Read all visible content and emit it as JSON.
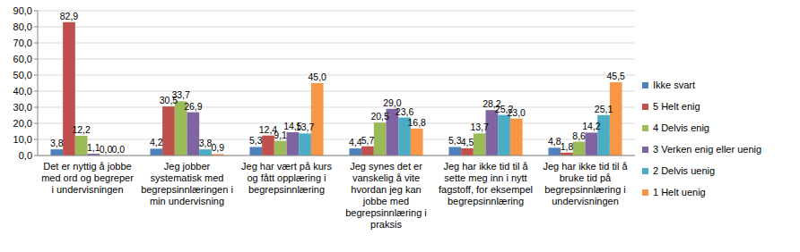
{
  "chart_data": {
    "type": "bar",
    "categories": [
      "Det er nyttig å jobbe med ord og begreper i undervisningen",
      "Jeg jobber systematisk med begrepsinnlæringen i min undervisning",
      "Jeg har vært på kurs og fått opplæring i begrepsinnlæring",
      "Jeg synes det er vanskelig å vite hvordan jeg kan jobbe med begrepsinnlæring i praksis",
      "Jeg har ikke tid til å sette meg inn i nytt fagstoff, for eksempel begrepsinnlæring",
      "Jeg har ikke tid til å bruke tid på begrepsinnlæring i undervisningen"
    ],
    "series": [
      {
        "name": "Ikke svart",
        "color": "#4f81bd",
        "values": [
          3.8,
          4.2,
          5.3,
          4.4,
          5.3,
          4.8
        ],
        "value_labels": [
          "3,8",
          "4,2",
          "5,3",
          "4,4",
          "5,3",
          "4,8"
        ]
      },
      {
        "name": "5 Helt enig",
        "color": "#c0504d",
        "values": [
          82.9,
          30.5,
          12.4,
          5.7,
          4.5,
          1.8
        ],
        "value_labels": [
          "82,9",
          "30,5",
          "12,4",
          "5,7",
          "4,5",
          "1,8"
        ]
      },
      {
        "name": "4 Delvis enig",
        "color": "#9bbb59",
        "values": [
          12.2,
          33.7,
          9.1,
          20.5,
          13.7,
          8.6
        ],
        "value_labels": [
          "12,2",
          "33,7",
          "9,1",
          "20,5",
          "13,7",
          "8,6"
        ]
      },
      {
        "name": "3 Verken enig eller uenig",
        "color": "#8064a2",
        "values": [
          1.1,
          26.9,
          14.5,
          29.0,
          28.2,
          14.2
        ],
        "value_labels": [
          "1,1",
          "26,9",
          "14,5",
          "29,0",
          "28,2",
          "14,2"
        ]
      },
      {
        "name": "2 Delvis uenig",
        "color": "#4bacc6",
        "values": [
          0.0,
          3.8,
          13.7,
          23.6,
          25.2,
          25.1
        ],
        "value_labels": [
          "0,0",
          "3,8",
          "13,7",
          "23,6",
          "25,2",
          "25,1"
        ]
      },
      {
        "name": "1 Helt uenig",
        "color": "#f79646",
        "values": [
          0.0,
          0.9,
          45.0,
          16.8,
          23.0,
          45.5
        ],
        "value_labels": [
          "0,0",
          "0,9",
          "45,0",
          "16,8",
          "23,0",
          "45,5"
        ]
      }
    ],
    "ylim": [
      0,
      90
    ],
    "yticks": [
      {
        "value": 0,
        "label": "0,0"
      },
      {
        "value": 10,
        "label": "10,0"
      },
      {
        "value": 20,
        "label": "20,0"
      },
      {
        "value": 30,
        "label": "30,0"
      },
      {
        "value": 40,
        "label": "40,0"
      },
      {
        "value": 50,
        "label": "50,0"
      },
      {
        "value": 60,
        "label": "60,0"
      },
      {
        "value": 70,
        "label": "70,0"
      },
      {
        "value": 80,
        "label": "80,0"
      },
      {
        "value": 90,
        "label": "90,0"
      }
    ],
    "grid": true,
    "legend": "right",
    "data_labels": true
  }
}
